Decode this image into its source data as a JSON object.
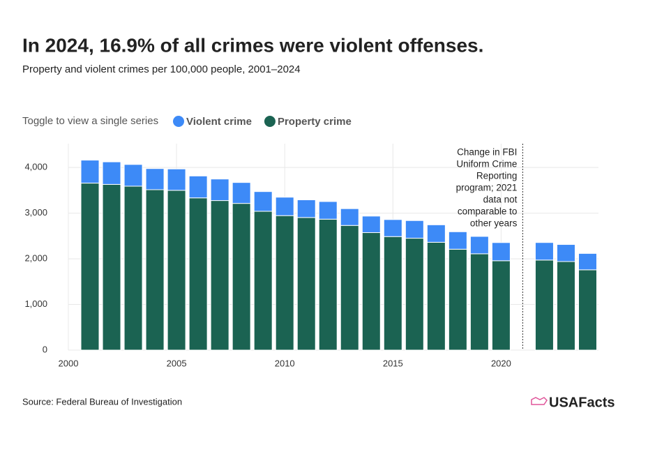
{
  "chart_data": {
    "type": "stacked-bar",
    "title": "In 2024, 16.9% of all crimes were violent offenses.",
    "subtitle": "Property and violent crimes per 100,000 people, 2001–2024",
    "legend_prompt": "Toggle to view a single series",
    "x": [
      2001,
      2002,
      2003,
      2004,
      2005,
      2006,
      2007,
      2008,
      2009,
      2010,
      2011,
      2012,
      2013,
      2014,
      2015,
      2016,
      2017,
      2018,
      2019,
      2020,
      2021,
      2022,
      2023,
      2024
    ],
    "series": [
      {
        "name": "Property crime",
        "color": "#1b6352",
        "values": [
          3658,
          3630,
          3591,
          3514,
          3500,
          3335,
          3276,
          3214,
          3041,
          2946,
          2905,
          2868,
          2731,
          2574,
          2487,
          2451,
          2362,
          2210,
          2110,
          1958,
          null,
          1973,
          1940,
          1759
        ]
      },
      {
        "name": "Violent crime",
        "color": "#3d8af7",
        "values": [
          504,
          494,
          476,
          463,
          469,
          480,
          472,
          458,
          432,
          404,
          387,
          387,
          368,
          362,
          373,
          387,
          383,
          383,
          381,
          398,
          null,
          384,
          374,
          359
        ]
      }
    ],
    "legend_order": [
      1,
      0
    ],
    "xlim": [
      2000,
      2024.5
    ],
    "xticks": [
      2000,
      2005,
      2010,
      2015,
      2020
    ],
    "ylim": [
      0,
      4400
    ],
    "yticks": [
      0,
      {
        "value": 1000,
        "label": "1,000"
      },
      {
        "value": 2000,
        "label": "2,000"
      },
      {
        "value": 3000,
        "label": "3,000"
      },
      {
        "value": 4000,
        "label": "4,000"
      }
    ],
    "grid": true,
    "annotation": {
      "x": 2021,
      "lines": [
        "Change in FBI",
        "Uniform Crime",
        "Reporting",
        "program; 2021",
        "data not",
        "comparable to",
        "other years"
      ]
    },
    "source": "Source: Federal Bureau of Investigation",
    "logo": "USAFacts"
  }
}
